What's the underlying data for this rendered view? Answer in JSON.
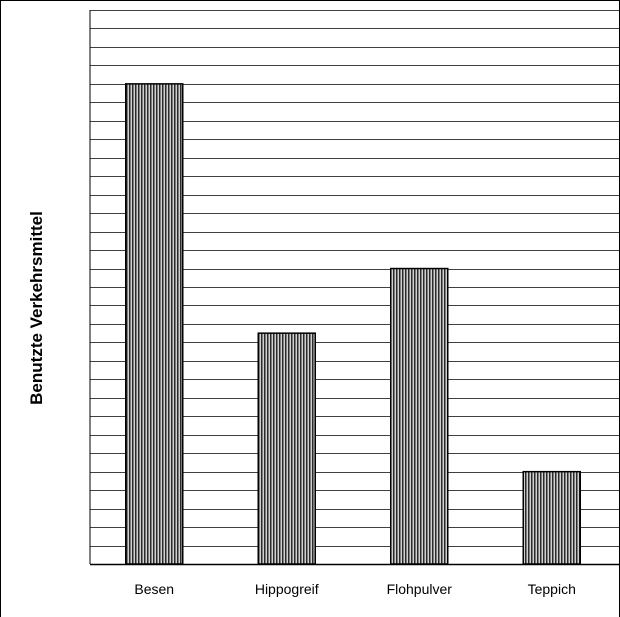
{
  "chart_data": {
    "type": "bar",
    "title": "",
    "xlabel": "",
    "ylabel": "Benutzte Verkehrsmittel",
    "categories": [
      "Besen",
      "Hippogreif",
      "Flohpulver",
      "Teppich"
    ],
    "values": [
      26,
      12.5,
      16,
      5
    ],
    "ylim": [
      0,
      30
    ],
    "grid": true,
    "legend": "none",
    "colors": {
      "bar_fill": "#555555",
      "bar_stroke": "#000000",
      "grid": "#000000"
    }
  }
}
